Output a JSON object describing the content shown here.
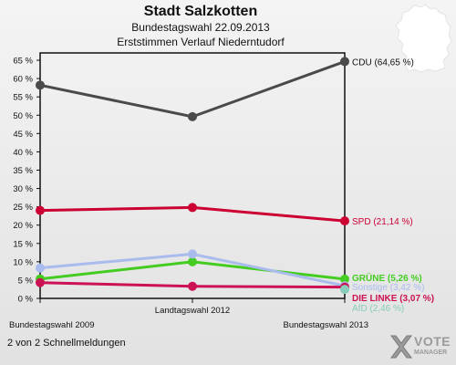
{
  "header": {
    "title": "Stadt Salzkotten",
    "subtitle": "Bundestagswahl 22.09.2013",
    "subtitle2": "Erststimmen Verlauf Niederntudorf"
  },
  "footer": {
    "note": "2 von 2 Schnellmeldungen"
  },
  "logo": {
    "line1": "VOTE",
    "line2": "MANAGER"
  },
  "colors": {
    "frame": "#111111",
    "background_top": "#f4f4f4",
    "background_bottom": "#e2e2e2",
    "map_fill": "#ffffff",
    "logo": "#9a9a9a"
  },
  "chart_data": {
    "type": "line",
    "categories": [
      "Bundestagswahl 2009",
      "Landtagswahl 2012",
      "Bundestagswahl 2013"
    ],
    "ylim": [
      0,
      67
    ],
    "yticks": [
      0,
      5,
      10,
      15,
      20,
      25,
      30,
      35,
      40,
      45,
      50,
      55,
      60,
      65
    ],
    "ytick_suffix": " %",
    "grid": false,
    "series": [
      {
        "name": "CDU",
        "end_label": "CDU (64,65 %)",
        "color": "#4a4a4a",
        "values": [
          58.2,
          49.6,
          64.65
        ]
      },
      {
        "name": "SPD",
        "end_label": "SPD (21,14 %)",
        "color": "#cc0033",
        "values": [
          24.0,
          24.8,
          21.14
        ]
      },
      {
        "name": "GRÜNE",
        "end_label": "GRÜNE (5,26 %)",
        "color": "#44cc22",
        "values": [
          5.3,
          10.0,
          5.26
        ]
      },
      {
        "name": "Sonstige",
        "end_label": "Sonstige (3,42 %)",
        "color": "#aabbee",
        "values": [
          8.3,
          12.1,
          3.42
        ]
      },
      {
        "name": "DIE LINKE",
        "end_label": "DIE LINKE (3,07 %)",
        "color": "#cc1155",
        "values": [
          4.3,
          3.3,
          3.07
        ]
      },
      {
        "name": "AfD",
        "end_label": "AfD (2,46 %)",
        "color": "#88ccbb",
        "values": [
          null,
          null,
          2.46
        ]
      }
    ]
  }
}
